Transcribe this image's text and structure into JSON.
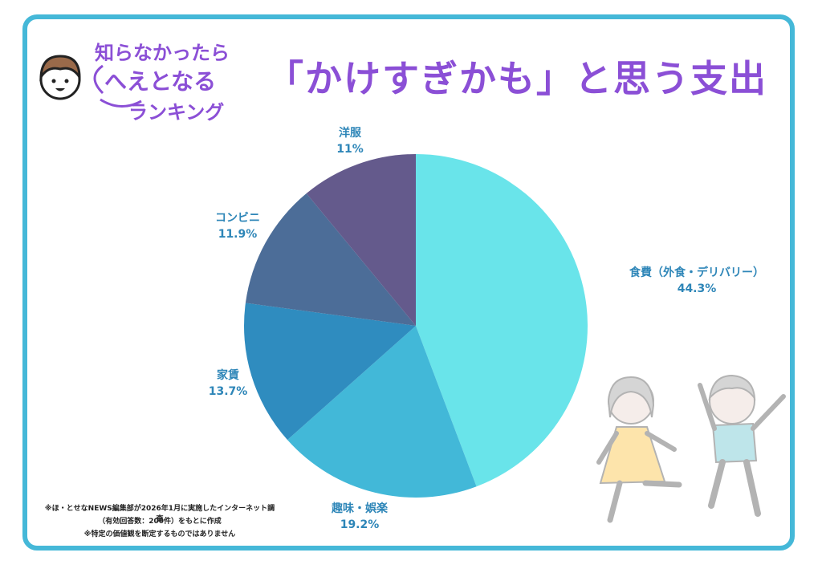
{
  "header": {
    "badge_line1": "知らなかったら",
    "badge_line2": "へえとなる",
    "badge_line3": "ランキング",
    "title": "「かけすぎかも」と思う支出"
  },
  "footnote": {
    "line1": "※ほ・とせなNEWS編集部が2026年1月に実施したインターネット調査",
    "line2": "（有効回答数：200件）をもとに作成",
    "line3": "※特定の価値観を断定するものではありません"
  },
  "chart_data": {
    "type": "pie",
    "title": "「かけすぎかも」と思う支出",
    "slices": [
      {
        "label": "食費（外食・デリバリー）",
        "value": 44.3,
        "value_label": "44.3%",
        "color": "#69e4ea"
      },
      {
        "label": "趣味・娯楽",
        "value": 19.2,
        "value_label": "19.2%",
        "color": "#42b8d8"
      },
      {
        "label": "家賃",
        "value": 13.7,
        "value_label": "13.7%",
        "color": "#2f8cbf"
      },
      {
        "label": "コンビニ",
        "value": 11.9,
        "value_label": "11.9%",
        "color": "#4c6d98"
      },
      {
        "label": "洋服",
        "value": 11,
        "value_label": "11%",
        "color": "#645a8c"
      }
    ]
  }
}
